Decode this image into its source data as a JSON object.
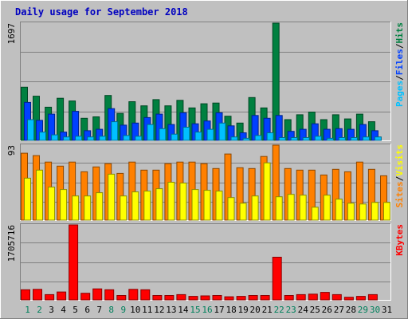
{
  "chart_data": {
    "type": "bar",
    "title": "Daily usage for September 2018",
    "categories": [
      "1",
      "2",
      "3",
      "4",
      "5",
      "6",
      "7",
      "8",
      "9",
      "10",
      "11",
      "12",
      "13",
      "14",
      "15",
      "16",
      "17",
      "18",
      "19",
      "20",
      "21",
      "22",
      "23",
      "24",
      "25",
      "26",
      "27",
      "28",
      "29",
      "30",
      "31"
    ],
    "weekend_days": [
      1,
      2,
      8,
      9,
      15,
      16,
      22,
      23,
      29,
      30
    ],
    "panels": [
      {
        "id": "pages_files_visits",
        "ymax_label": "1697",
        "ymax": 1697,
        "side_label": [
          "Pages",
          "/",
          "Files",
          "/",
          "Hits"
        ],
        "side_label_colors": [
          "#00c0ff",
          "#000000",
          "#0040ff",
          "#000000",
          "#008040"
        ],
        "series": [
          {
            "name": "Hits",
            "color": "#008040",
            "values": [
              770,
              640,
              480,
              610,
              570,
              320,
              340,
              650,
              390,
              560,
              500,
              590,
              500,
              580,
              470,
              530,
              540,
              350,
              250,
              620,
              470,
              1697,
              300,
              370,
              410,
              300,
              370,
              310,
              380,
              270,
              0
            ]
          },
          {
            "name": "Files",
            "color": "#0040ff",
            "values": [
              550,
              290,
              380,
              120,
              420,
              140,
              160,
              460,
              220,
              250,
              330,
              380,
              230,
              400,
              240,
              280,
              400,
              210,
              110,
              360,
              320,
              360,
              130,
              160,
              240,
              160,
              170,
              160,
              230,
              140,
              0
            ]
          },
          {
            "name": "Pages",
            "color": "#00c0ff",
            "values": [
              300,
              120,
              80,
              50,
              60,
              50,
              60,
              270,
              70,
              60,
              230,
              170,
              90,
              190,
              120,
              160,
              250,
              50,
              30,
              70,
              110,
              40,
              40,
              40,
              60,
              30,
              40,
              40,
              50,
              50,
              0
            ]
          }
        ]
      },
      {
        "id": "sites_visits",
        "ymax_label": "93",
        "ymax": 93,
        "side_label": [
          "Sites",
          "/",
          "Visits"
        ],
        "side_label_colors": [
          "#ff8000",
          "#000000",
          "#ffff00"
        ],
        "series": [
          {
            "name": "Sites",
            "color": "#ff8000",
            "values": [
              83,
              80,
              72,
              67,
              72,
              60,
              66,
              70,
              58,
              72,
              62,
              62,
              70,
              72,
              72,
              70,
              64,
              82,
              65,
              64,
              79,
              93,
              64,
              62,
              62,
              56,
              63,
              60,
              72,
              63,
              55
            ]
          },
          {
            "name": "Visits",
            "color": "#ffff00",
            "values": [
              52,
              62,
              41,
              38,
              30,
              30,
              34,
              57,
              30,
              35,
              36,
              39,
              47,
              46,
              38,
              37,
              36,
              28,
              21,
              30,
              71,
              29,
              32,
              31,
              16,
              31,
              26,
              21,
              20,
              22,
              22
            ]
          }
        ]
      },
      {
        "id": "kbytes",
        "ymax_label": "1705716",
        "ymax": 1705716,
        "side_label": [
          "KBytes"
        ],
        "side_label_colors": [
          "#ff0000"
        ],
        "series": [
          {
            "name": "KBytes",
            "color": "#ff0000",
            "values": [
              230000,
              240000,
              120000,
              180000,
              1705716,
              150000,
              250000,
              230000,
              100000,
              240000,
              230000,
              100000,
              100000,
              120000,
              80000,
              90000,
              100000,
              70000,
              80000,
              100000,
              100000,
              970000,
              100000,
              120000,
              130000,
              170000,
              120000,
              60000,
              80000,
              120000,
              0
            ]
          }
        ]
      }
    ]
  }
}
